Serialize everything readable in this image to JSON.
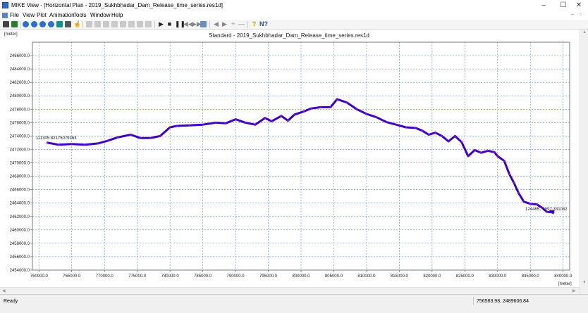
{
  "window": {
    "title": "MIKE View - [Horizontal Plan - 2019_Sukhbhadar_Dam_Release_time_series.res1d]",
    "controls": {
      "minimize": "–",
      "maximize": "☐",
      "close": "✕"
    },
    "mdi_controls": {
      "minimize": "–",
      "restore": "▫"
    }
  },
  "menu": {
    "items": [
      "File",
      "View",
      "Plot",
      "Animation",
      "Tools",
      "Window",
      "Help"
    ]
  },
  "toolbar": {
    "icons": [
      "print-icon",
      "open-icon",
      "zoom-in-icon",
      "zoom-out-icon",
      "zoom-window-icon",
      "zoom-full-icon",
      "zoom-previous-icon",
      "select-icon",
      "pan-icon",
      "graphic-layer-icon",
      "display-icon",
      "profile-icon",
      "time-series-icon",
      "settings-icon",
      "longitudinal-icon",
      "q-h-icon",
      "selection-filter-icon",
      "play-icon",
      "stop-icon",
      "pause-icon",
      "rewind-icon",
      "fast-forward-icon",
      "step-icon",
      "step-back-icon",
      "step-forward-icon",
      "add-icon",
      "remove-icon",
      "help-icon",
      "context-help-icon"
    ]
  },
  "plot": {
    "title": "Standard - 2019_Sukhbhadar_Dam_Release_time_series.res1d",
    "y_unit": "[meter]",
    "x_unit": "[meter]",
    "start_label": "111305.82175079263",
    "end_label": "124465', 1597.331082"
  },
  "status": {
    "left": "Ready",
    "coords": "756583.98, 2489606.84"
  },
  "chart_data": {
    "type": "line",
    "title": "Standard - 2019_Sukhbhadar_Dam_Release_time_series.res1d",
    "xlabel": "[meter]",
    "ylabel": "[meter]",
    "xlim": [
      759000,
      841000
    ],
    "ylim": [
      2454000,
      2488000
    ],
    "x_ticks": [
      "760000.0",
      "765000.0",
      "770000.0",
      "775000.0",
      "780000.0",
      "785000.0",
      "790000.0",
      "795000.0",
      "800000.0",
      "805000.0",
      "810000.0",
      "815000.0",
      "820000.0",
      "825000.0",
      "830000.0",
      "835000.0",
      "840000.0"
    ],
    "y_ticks": [
      "2454000.0",
      "2456000.0",
      "2458000.0",
      "2460000.0",
      "2462000.0",
      "2464000.0",
      "2466000.0",
      "2468000.0",
      "2470000.0",
      "2472000.0",
      "2474000.0",
      "2476000.0",
      "2478000.0",
      "2480000.0",
      "2482000.0",
      "2484000.0",
      "2486000.0"
    ],
    "grid": true,
    "series": [
      {
        "color": "#3a00c8",
        "x": [
          761300,
          763000,
          765000,
          767000,
          769000,
          770500,
          772000,
          774000,
          775500,
          777000,
          778500,
          780000,
          781000,
          783000,
          785000,
          787000,
          788500,
          790000,
          791500,
          793000,
          794500,
          795500,
          797000,
          798000,
          799000,
          800500,
          801500,
          803000,
          804500,
          805500,
          807000,
          808500,
          810000,
          811500,
          813000,
          814500,
          816000,
          817500,
          818500,
          819500,
          820500,
          821500,
          822500,
          823500,
          824500,
          825500,
          826500,
          827500,
          828500,
          829500,
          830000,
          831000,
          831800,
          832500,
          833200,
          834000,
          835000,
          836000,
          836800,
          837500,
          838500
        ],
        "y": [
          2473000,
          2472700,
          2472800,
          2472700,
          2472900,
          2473300,
          2473800,
          2474200,
          2473700,
          2473700,
          2474000,
          2475300,
          2475500,
          2475600,
          2475700,
          2476000,
          2475900,
          2476500,
          2476000,
          2475700,
          2476700,
          2476200,
          2477000,
          2476300,
          2477200,
          2477700,
          2478100,
          2478300,
          2478300,
          2479500,
          2479000,
          2478000,
          2477300,
          2476800,
          2476100,
          2475700,
          2475300,
          2475200,
          2474800,
          2474200,
          2474500,
          2474000,
          2473200,
          2474000,
          2473100,
          2471000,
          2471900,
          2471500,
          2471800,
          2471600,
          2471000,
          2470300,
          2468300,
          2467000,
          2465500,
          2464200,
          2463900,
          2463800,
          2463300,
          2462700,
          2462600
        ]
      }
    ]
  }
}
